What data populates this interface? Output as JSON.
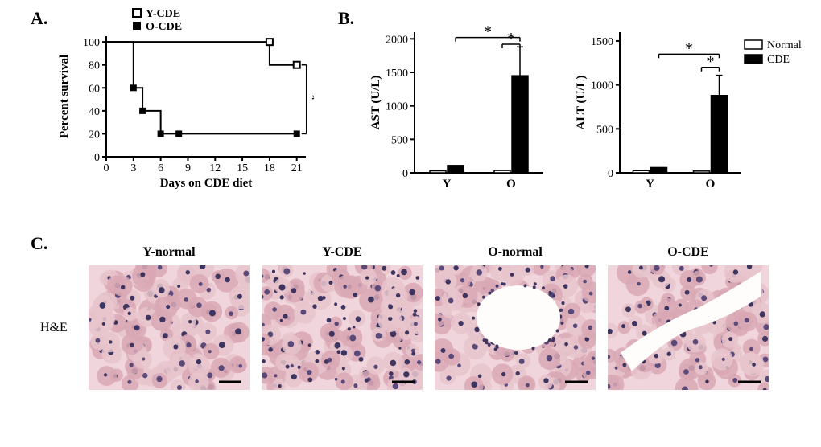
{
  "panelA": {
    "label": "A.",
    "chart": {
      "type": "line-step",
      "legend": [
        {
          "label": "Y-CDE",
          "marker": "open-square",
          "color": "#000000"
        },
        {
          "label": "O-CDE",
          "marker": "filled-square",
          "color": "#000000"
        }
      ],
      "x_label": "Days on CDE diet",
      "y_label": "Percent survival",
      "xlim": [
        0,
        22
      ],
      "ylim": [
        0,
        105
      ],
      "xticks": [
        0,
        3,
        6,
        9,
        12,
        15,
        18,
        21
      ],
      "yticks": [
        0,
        20,
        40,
        60,
        80,
        100
      ],
      "series": {
        "Y-CDE": [
          [
            0,
            100
          ],
          [
            18,
            100
          ],
          [
            18,
            80
          ],
          [
            21,
            80
          ]
        ],
        "O-CDE": [
          [
            0,
            100
          ],
          [
            3,
            100
          ],
          [
            3,
            60
          ],
          [
            4,
            60
          ],
          [
            4,
            40
          ],
          [
            6,
            40
          ],
          [
            6,
            20
          ],
          [
            8,
            20
          ],
          [
            8,
            20
          ],
          [
            21,
            20
          ]
        ]
      },
      "markers": {
        "Y-CDE": [
          [
            18,
            100
          ],
          [
            21,
            80
          ]
        ],
        "O-CDE": [
          [
            3,
            60
          ],
          [
            4,
            40
          ],
          [
            6,
            20
          ],
          [
            8,
            20
          ],
          [
            21,
            20
          ]
        ]
      },
      "annotation": "*",
      "line_color": "#000000",
      "bg": "#ffffff",
      "line_width": 2
    }
  },
  "panelB": {
    "label": "B.",
    "chart1": {
      "type": "bar",
      "y_label": "AST (U/L)",
      "ylim": [
        0,
        2100
      ],
      "yticks": [
        0,
        500,
        1000,
        1500,
        2000
      ],
      "xticks": [
        "Y",
        "O"
      ],
      "groups": [
        "Normal",
        "CDE"
      ],
      "values": {
        "Y": {
          "Normal": 30,
          "CDE": 110
        },
        "O": {
          "Normal": 35,
          "CDE": 1450
        }
      },
      "errors": {
        "Y": {
          "Normal": 0,
          "CDE": 0
        },
        "O": {
          "Normal": 0,
          "CDE": 430
        }
      },
      "colors": {
        "Normal": "#ffffff",
        "CDE": "#000000"
      },
      "sig_pairs": [
        {
          "from": "Y-CDE",
          "to": "O-CDE",
          "label": "*",
          "y": 2020
        },
        {
          "from": "O-Normal",
          "to": "O-CDE",
          "label": "*",
          "y": 1920
        }
      ]
    },
    "chart2": {
      "type": "bar",
      "y_label": "ALT (U/L)",
      "ylim": [
        0,
        1600
      ],
      "yticks": [
        0,
        500,
        1000,
        1500
      ],
      "xticks": [
        "Y",
        "O"
      ],
      "groups": [
        "Normal",
        "CDE"
      ],
      "values": {
        "Y": {
          "Normal": 25,
          "CDE": 60
        },
        "O": {
          "Normal": 20,
          "CDE": 880
        }
      },
      "errors": {
        "Y": {
          "Normal": 0,
          "CDE": 0
        },
        "O": {
          "Normal": 0,
          "CDE": 230
        }
      },
      "colors": {
        "Normal": "#ffffff",
        "CDE": "#000000"
      },
      "sig_pairs": [
        {
          "from": "Y-CDE",
          "to": "O-CDE",
          "label": "*",
          "y": 1350
        },
        {
          "from": "O-Normal",
          "to": "O-CDE",
          "label": "*",
          "y": 1200
        }
      ],
      "legend": [
        {
          "label": "Normal",
          "color": "#ffffff"
        },
        {
          "label": "CDE",
          "color": "#000000"
        }
      ]
    }
  },
  "panelC": {
    "label": "C.",
    "row_label": "H&E",
    "conditions": [
      {
        "title": "Y-normal",
        "type": "normal-young"
      },
      {
        "title": "Y-CDE",
        "type": "cde-young"
      },
      {
        "title": "O-normal",
        "type": "normal-old"
      },
      {
        "title": "O-CDE",
        "type": "cde-old"
      }
    ],
    "histology_palette": {
      "cytoplasm1": "#e8c4cd",
      "cytoplasm2": "#d9a8b5",
      "nucleus": "#5a4a7a",
      "nucleus2": "#3d3560",
      "background": "#f1d5dc",
      "white": "#ffffff",
      "sinusoid": "#fefdfb"
    }
  }
}
